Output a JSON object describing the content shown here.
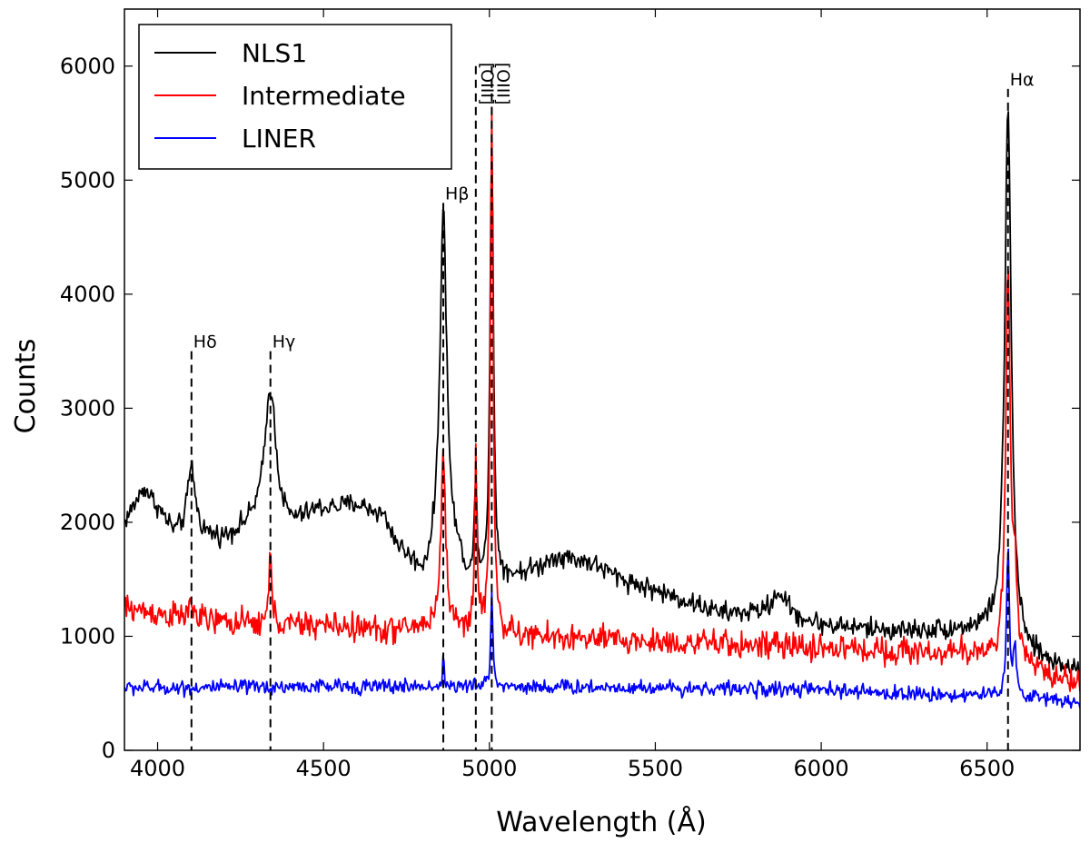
{
  "chart_data": {
    "type": "line",
    "title": "",
    "xlabel": "Wavelength (Å)",
    "ylabel": "Counts",
    "xlim": [
      3900,
      6780
    ],
    "ylim": [
      0,
      6500
    ],
    "xticks": [
      4000,
      4500,
      5000,
      5500,
      6000,
      6500
    ],
    "yticks": [
      0,
      1000,
      2000,
      3000,
      4000,
      5000,
      6000
    ],
    "legend_position": "top-left",
    "series": [
      {
        "name": "NLS1",
        "color": "#000000",
        "continuum": [
          [
            3900,
            2000
          ],
          [
            3960,
            2300
          ],
          [
            4050,
            1900
          ],
          [
            4200,
            1850
          ],
          [
            4300,
            2000
          ],
          [
            4400,
            1950
          ],
          [
            4480,
            2100
          ],
          [
            4600,
            2150
          ],
          [
            4680,
            2050
          ],
          [
            4720,
            1800
          ],
          [
            4800,
            1500
          ],
          [
            4840,
            1600
          ],
          [
            4900,
            1650
          ],
          [
            4950,
            1400
          ],
          [
            5050,
            1500
          ],
          [
            5150,
            1600
          ],
          [
            5200,
            1700
          ],
          [
            5300,
            1650
          ],
          [
            5400,
            1500
          ],
          [
            5500,
            1400
          ],
          [
            5700,
            1200
          ],
          [
            5850,
            1200
          ],
          [
            6000,
            1100
          ],
          [
            6200,
            1050
          ],
          [
            6400,
            1050
          ],
          [
            6500,
            1050
          ],
          [
            6600,
            850
          ],
          [
            6700,
            750
          ],
          [
            6780,
            700
          ]
        ],
        "peaks": [
          [
            4102,
            600,
            14
          ],
          [
            4340,
            1200,
            20
          ],
          [
            4861,
            3100,
            13
          ],
          [
            4959,
            900,
            5
          ],
          [
            5007,
            3900,
            6
          ],
          [
            5876,
            200,
            25
          ],
          [
            6563,
            4700,
            12
          ]
        ],
        "noise": 90
      },
      {
        "name": "Intermediate",
        "color": "#ff0000",
        "continuum": [
          [
            3900,
            1250
          ],
          [
            4000,
            1200
          ],
          [
            4100,
            1150
          ],
          [
            4300,
            1100
          ],
          [
            4500,
            1100
          ],
          [
            4700,
            1050
          ],
          [
            4850,
            1100
          ],
          [
            4950,
            1050
          ],
          [
            5100,
            1000
          ],
          [
            5500,
            950
          ],
          [
            6000,
            900
          ],
          [
            6400,
            850
          ],
          [
            6500,
            850
          ],
          [
            6600,
            750
          ],
          [
            6700,
            650
          ],
          [
            6780,
            600
          ]
        ],
        "peaks": [
          [
            4102,
            150,
            8
          ],
          [
            4340,
            650,
            5
          ],
          [
            4861,
            1550,
            8
          ],
          [
            4959,
            1550,
            4
          ],
          [
            5007,
            4550,
            5
          ],
          [
            6563,
            3450,
            8
          ],
          [
            6584,
            700,
            6
          ]
        ],
        "noise": 120
      },
      {
        "name": "LINER",
        "color": "#0000ff",
        "continuum": [
          [
            3900,
            550
          ],
          [
            4200,
            550
          ],
          [
            4500,
            560
          ],
          [
            5000,
            560
          ],
          [
            5500,
            550
          ],
          [
            6000,
            530
          ],
          [
            6200,
            500
          ],
          [
            6500,
            480
          ],
          [
            6700,
            450
          ],
          [
            6780,
            420
          ]
        ],
        "peaks": [
          [
            4861,
            250,
            3
          ],
          [
            5007,
            800,
            4
          ],
          [
            6563,
            1300,
            5
          ],
          [
            6584,
            450,
            5
          ]
        ],
        "noise": 65
      }
    ],
    "line_markers": [
      {
        "label": "Hδ",
        "x": 4102,
        "y_top": 3500
      },
      {
        "label": "Hγ",
        "x": 4340,
        "y_top": 3500
      },
      {
        "label": "Hβ",
        "x": 4861,
        "y_top": 4800
      },
      {
        "label": "[OIII]",
        "x": 4959,
        "y_top": 6000
      },
      {
        "label": "[OIII]",
        "x": 5007,
        "y_top": 6000
      },
      {
        "label": "Hα",
        "x": 6563,
        "y_top": 5800
      }
    ]
  }
}
